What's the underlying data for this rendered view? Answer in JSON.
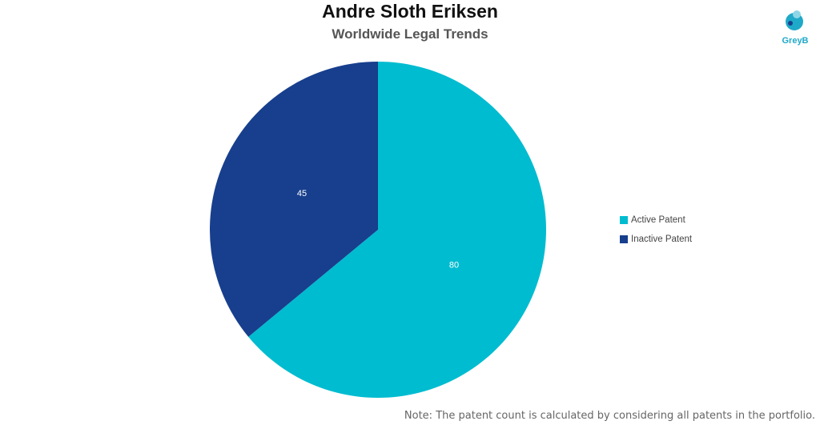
{
  "header": {
    "title": "Andre Sloth Eriksen",
    "subtitle": "Worldwide Legal Trends"
  },
  "logo": {
    "text": "GreyB",
    "icon": "greyb-logo-icon",
    "color": "#1fa9c9"
  },
  "chart_data": {
    "type": "pie",
    "title": "Andre Sloth Eriksen",
    "subtitle": "Worldwide Legal Trends",
    "slices": [
      {
        "label": "Active Patent",
        "value": 80,
        "color": "#00bcd0"
      },
      {
        "label": "Inactive Patent",
        "value": 45,
        "color": "#173f8d"
      }
    ],
    "start_angle": "12 o'clock",
    "direction": "clockwise",
    "legend_position": "right"
  },
  "note": "Note: The patent count is calculated by considering all patents in the portfolio."
}
